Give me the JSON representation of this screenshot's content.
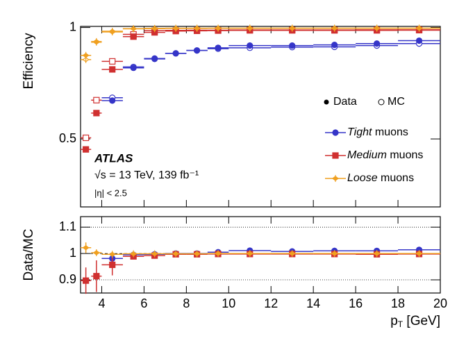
{
  "chart_data": [
    {
      "type": "errorbar",
      "ylabel": "Efficiency",
      "xlim": [
        3,
        20
      ],
      "xticks": [
        4,
        6,
        8,
        10,
        12,
        14,
        16,
        18,
        20
      ],
      "show_xtick_labels": false,
      "ylim": [
        0.195,
        1.005
      ],
      "yticks": [
        0.5,
        1
      ],
      "grid": false,
      "x": [
        3.25,
        3.75,
        4.5,
        5.5,
        6.5,
        7.5,
        8.5,
        9.5,
        11,
        13,
        15,
        17,
        19
      ],
      "x_err": [
        0.25,
        0.25,
        0.5,
        0.5,
        0.5,
        0.5,
        0.5,
        0.5,
        1,
        1,
        1,
        1,
        1
      ],
      "legend_types": [
        "Data",
        "MC"
      ],
      "annotations": [
        "ATLAS",
        "√s = 13 TeV, 139 fb⁻¹",
        "|η| < 2.5"
      ],
      "series": [
        {
          "name": "Tight muons",
          "color": "#3535c8",
          "marker": "circle",
          "values": [
            null,
            null,
            0.672,
            0.819,
            0.859,
            0.884,
            0.897,
            0.909,
            0.919,
            0.919,
            0.922,
            0.928,
            0.941
          ],
          "mc_values": [
            null,
            null,
            0.685,
            0.823,
            0.861,
            0.884,
            0.897,
            0.905,
            0.909,
            0.912,
            0.913,
            0.919,
            0.928
          ]
        },
        {
          "name": "Medium muons",
          "color": "#d03030",
          "marker": "square",
          "values": [
            0.453,
            0.616,
            0.812,
            0.959,
            0.978,
            0.984,
            0.985,
            0.986,
            0.987,
            0.987,
            0.987,
            0.987,
            0.988
          ],
          "mc_values": [
            0.505,
            0.674,
            0.848,
            0.969,
            0.986,
            0.987,
            0.988,
            0.988,
            0.989,
            0.989,
            0.989,
            0.99,
            0.99
          ]
        },
        {
          "name": "Loose muons",
          "color": "#f0a020",
          "marker": "star",
          "values": [
            0.875,
            0.937,
            0.98,
            0.994,
            0.995,
            0.996,
            0.996,
            0.997,
            0.997,
            0.997,
            0.997,
            0.997,
            0.997
          ],
          "mc_values": [
            0.856,
            0.934,
            0.983,
            0.995,
            0.996,
            0.997,
            0.997,
            0.997,
            0.997,
            0.997,
            0.997,
            0.997,
            0.997
          ]
        }
      ]
    },
    {
      "type": "ratio",
      "ylabel": "Data/MC",
      "xlabel": "pT [GeV]",
      "xlim": [
        3,
        20
      ],
      "xticks": [
        4,
        6,
        8,
        10,
        12,
        14,
        16,
        18,
        20
      ],
      "show_xtick_labels": true,
      "ylim": [
        0.85,
        1.14
      ],
      "yticks": [
        0.9,
        1,
        1.1
      ],
      "grid": true,
      "x": [
        3.25,
        3.75,
        4.5,
        5.5,
        6.5,
        7.5,
        8.5,
        9.5,
        11,
        13,
        15,
        17,
        19
      ],
      "x_err": [
        0.25,
        0.25,
        0.5,
        0.5,
        0.5,
        0.5,
        0.5,
        0.5,
        1,
        1,
        1,
        1,
        1
      ],
      "series": [
        {
          "name": "Tight muons",
          "color": "#3535c8",
          "marker": "circle",
          "values": [
            null,
            null,
            0.981,
            0.995,
            0.997,
            1.0,
            1.0,
            1.005,
            1.011,
            1.008,
            1.01,
            1.01,
            1.014
          ],
          "errors": [
            null,
            null,
            0.02,
            0.005,
            0.004,
            0.006,
            0.005,
            0.008,
            0.005,
            0.01,
            0.012,
            0.01,
            0.01
          ]
        },
        {
          "name": "Medium muons",
          "color": "#d03030",
          "marker": "square",
          "values": [
            0.897,
            0.914,
            0.957,
            0.989,
            0.992,
            0.997,
            0.997,
            0.998,
            0.998,
            0.998,
            0.998,
            0.997,
            0.998
          ],
          "errors": [
            0.05,
            0.06,
            0.04,
            0.008,
            0.004,
            0.004,
            0.003,
            0.003,
            0.003,
            0.003,
            0.003,
            0.003,
            0.003
          ]
        },
        {
          "name": "Loose muons",
          "color": "#f0a020",
          "marker": "star",
          "values": [
            1.022,
            1.003,
            0.997,
            0.999,
            0.999,
            0.999,
            0.999,
            1.0,
            1.0,
            1.0,
            1.0,
            1.0,
            1.0
          ],
          "errors": [
            0.02,
            0.01,
            0.005,
            0.003,
            0.003,
            0.003,
            0.003,
            0.003,
            0.003,
            0.003,
            0.003,
            0.003,
            0.003
          ]
        }
      ]
    }
  ]
}
